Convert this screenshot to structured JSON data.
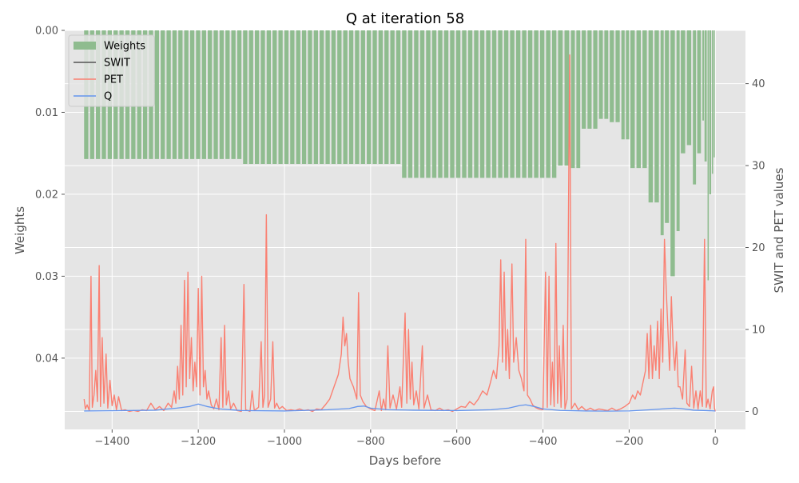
{
  "chart_data": {
    "type": "bar+line",
    "title": "Q at iteration 58",
    "xlabel": "Days before",
    "ylabel_left": "Weights",
    "ylabel_right": "SWIT and PET values",
    "xlim": [
      -1510,
      70
    ],
    "ylim_left": [
      0.0487,
      0.0
    ],
    "ylim_right": [
      -2.2,
      46.5
    ],
    "x_ticks": [
      -1400,
      -1200,
      -1000,
      -800,
      -600,
      -400,
      -200,
      0
    ],
    "x_tick_labels": [
      "−1400",
      "−1200",
      "−1000",
      "−800",
      "−600",
      "−400",
      "−200",
      "0"
    ],
    "y_left_ticks": [
      0.0,
      0.01,
      0.02,
      0.03,
      0.04
    ],
    "y_left_tick_labels": [
      "0.00",
      "0.01",
      "0.02",
      "0.03",
      "0.04"
    ],
    "y_right_ticks": [
      0,
      10,
      20,
      30,
      40
    ],
    "y_right_tick_labels": [
      "0",
      "10",
      "20",
      "30",
      "40"
    ],
    "grid": true,
    "legend_position": "top-left",
    "legend": [
      {
        "label": "Weights",
        "kind": "patch",
        "color": "#8fbc8f"
      },
      {
        "label": "SWIT",
        "kind": "line",
        "color": "#555555"
      },
      {
        "label": "PET",
        "kind": "line",
        "color": "#fa8072"
      },
      {
        "label": "Q",
        "kind": "line",
        "color": "#6495ed"
      }
    ],
    "weights_segments": [
      {
        "x_start": -1465,
        "x_end": -1096,
        "value": 0.0157
      },
      {
        "x_start": -1096,
        "x_end": -727,
        "value": 0.0163
      },
      {
        "x_start": -727,
        "x_end": -365,
        "value": 0.018
      },
      {
        "x_start": -365,
        "x_end": -335,
        "value": 0.0165
      },
      {
        "x_start": -335,
        "x_end": -310,
        "value": 0.0168
      },
      {
        "x_start": -310,
        "x_end": -270,
        "value": 0.012
      },
      {
        "x_start": -270,
        "x_end": -245,
        "value": 0.0108
      },
      {
        "x_start": -245,
        "x_end": -218,
        "value": 0.0112
      },
      {
        "x_start": -218,
        "x_end": -197,
        "value": 0.0133
      },
      {
        "x_start": -197,
        "x_end": -155,
        "value": 0.0168
      },
      {
        "x_start": -155,
        "x_end": -127,
        "value": 0.021
      },
      {
        "x_start": -127,
        "x_end": -117,
        "value": 0.025
      },
      {
        "x_start": -117,
        "x_end": -104,
        "value": 0.0235
      },
      {
        "x_start": -104,
        "x_end": -90,
        "value": 0.03
      },
      {
        "x_start": -90,
        "x_end": -80,
        "value": 0.0245
      },
      {
        "x_start": -80,
        "x_end": -66,
        "value": 0.015
      },
      {
        "x_start": -66,
        "x_end": -52,
        "value": 0.014
      },
      {
        "x_start": -52,
        "x_end": -42,
        "value": 0.0188
      },
      {
        "x_start": -42,
        "x_end": -30,
        "value": 0.015
      },
      {
        "x_start": -30,
        "x_end": -25,
        "value": 0.011
      },
      {
        "x_start": -25,
        "x_end": -18,
        "value": 0.016
      },
      {
        "x_start": -18,
        "x_end": -14,
        "value": 0.0305
      },
      {
        "x_start": -14,
        "x_end": -8,
        "value": 0.02
      },
      {
        "x_start": -8,
        "x_end": -4,
        "value": 0.0175
      },
      {
        "x_start": -4,
        "x_end": 0,
        "value": 0.0155
      }
    ],
    "pet_series": [
      [
        -1465,
        1.5
      ],
      [
        -1462,
        0.3
      ],
      [
        -1458,
        0.8
      ],
      [
        -1453,
        0.1
      ],
      [
        -1449,
        16.5
      ],
      [
        -1446,
        0.5
      ],
      [
        -1442,
        2.0
      ],
      [
        -1438,
        5.0
      ],
      [
        -1434,
        1.2
      ],
      [
        -1430,
        17.8
      ],
      [
        -1427,
        0.6
      ],
      [
        -1423,
        9.0
      ],
      [
        -1419,
        1.0
      ],
      [
        -1414,
        7.0
      ],
      [
        -1410,
        0.4
      ],
      [
        -1405,
        3.8
      ],
      [
        -1400,
        0.7
      ],
      [
        -1395,
        2.0
      ],
      [
        -1390,
        0.2
      ],
      [
        -1385,
        1.8
      ],
      [
        -1378,
        0.1
      ],
      [
        -1370,
        0.2
      ],
      [
        -1360,
        0.0
      ],
      [
        -1350,
        0.1
      ],
      [
        -1340,
        0.0
      ],
      [
        -1330,
        0.2
      ],
      [
        -1320,
        0.1
      ],
      [
        -1310,
        1.0
      ],
      [
        -1300,
        0.2
      ],
      [
        -1290,
        0.6
      ],
      [
        -1280,
        0.1
      ],
      [
        -1270,
        1.0
      ],
      [
        -1262,
        0.5
      ],
      [
        -1256,
        2.5
      ],
      [
        -1252,
        1.0
      ],
      [
        -1248,
        5.5
      ],
      [
        -1244,
        1.5
      ],
      [
        -1240,
        10.5
      ],
      [
        -1236,
        2.0
      ],
      [
        -1232,
        16.0
      ],
      [
        -1228,
        3.0
      ],
      [
        -1224,
        17.0
      ],
      [
        -1220,
        4.0
      ],
      [
        -1216,
        9.0
      ],
      [
        -1212,
        2.5
      ],
      [
        -1208,
        6.0
      ],
      [
        -1204,
        3.0
      ],
      [
        -1200,
        15.0
      ],
      [
        -1196,
        2.0
      ],
      [
        -1192,
        16.5
      ],
      [
        -1188,
        3.0
      ],
      [
        -1184,
        5.0
      ],
      [
        -1180,
        1.5
      ],
      [
        -1176,
        2.5
      ],
      [
        -1170,
        0.8
      ],
      [
        -1164,
        0.3
      ],
      [
        -1158,
        1.5
      ],
      [
        -1152,
        0.2
      ],
      [
        -1147,
        9.0
      ],
      [
        -1143,
        0.5
      ],
      [
        -1139,
        10.5
      ],
      [
        -1135,
        0.8
      ],
      [
        -1130,
        2.5
      ],
      [
        -1125,
        0.3
      ],
      [
        -1118,
        1.0
      ],
      [
        -1110,
        0.1
      ],
      [
        -1100,
        0.0
      ],
      [
        -1094,
        15.5
      ],
      [
        -1090,
        0.2
      ],
      [
        -1080,
        0.0
      ],
      [
        -1075,
        2.5
      ],
      [
        -1070,
        0.1
      ],
      [
        -1060,
        0.5
      ],
      [
        -1054,
        8.5
      ],
      [
        -1050,
        0.5
      ],
      [
        -1046,
        2.0
      ],
      [
        -1042,
        24.0
      ],
      [
        -1038,
        0.5
      ],
      [
        -1032,
        1.5
      ],
      [
        -1027,
        8.5
      ],
      [
        -1023,
        0.4
      ],
      [
        -1018,
        1.0
      ],
      [
        -1012,
        0.3
      ],
      [
        -1005,
        0.6
      ],
      [
        -995,
        0.1
      ],
      [
        -985,
        0.2
      ],
      [
        -975,
        0.1
      ],
      [
        -965,
        0.3
      ],
      [
        -955,
        0.1
      ],
      [
        -945,
        0.2
      ],
      [
        -935,
        0.0
      ],
      [
        -925,
        0.3
      ],
      [
        -915,
        0.2
      ],
      [
        -905,
        0.8
      ],
      [
        -895,
        1.5
      ],
      [
        -885,
        3.0
      ],
      [
        -875,
        4.5
      ],
      [
        -868,
        7.0
      ],
      [
        -864,
        11.5
      ],
      [
        -860,
        8.0
      ],
      [
        -856,
        9.5
      ],
      [
        -852,
        6.0
      ],
      [
        -848,
        4.0
      ],
      [
        -840,
        3.0
      ],
      [
        -832,
        1.5
      ],
      [
        -828,
        14.5
      ],
      [
        -824,
        2.0
      ],
      [
        -818,
        1.2
      ],
      [
        -810,
        0.6
      ],
      [
        -800,
        0.3
      ],
      [
        -790,
        0.1
      ],
      [
        -780,
        2.5
      ],
      [
        -775,
        0.1
      ],
      [
        -770,
        1.5
      ],
      [
        -765,
        0.2
      ],
      [
        -760,
        8.0
      ],
      [
        -755,
        0.4
      ],
      [
        -748,
        2.0
      ],
      [
        -740,
        0.3
      ],
      [
        -732,
        3.0
      ],
      [
        -728,
        0.5
      ],
      [
        -720,
        12.0
      ],
      [
        -716,
        1.0
      ],
      [
        -712,
        10.0
      ],
      [
        -708,
        1.5
      ],
      [
        -704,
        6.0
      ],
      [
        -700,
        0.8
      ],
      [
        -694,
        2.5
      ],
      [
        -688,
        0.3
      ],
      [
        -680,
        8.0
      ],
      [
        -676,
        0.4
      ],
      [
        -668,
        2.0
      ],
      [
        -660,
        0.2
      ],
      [
        -650,
        0.1
      ],
      [
        -640,
        0.4
      ],
      [
        -630,
        0.1
      ],
      [
        -620,
        0.2
      ],
      [
        -610,
        0.0
      ],
      [
        -600,
        0.3
      ],
      [
        -590,
        0.6
      ],
      [
        -580,
        0.5
      ],
      [
        -570,
        1.2
      ],
      [
        -560,
        0.8
      ],
      [
        -550,
        1.5
      ],
      [
        -540,
        2.5
      ],
      [
        -530,
        2.0
      ],
      [
        -522,
        3.5
      ],
      [
        -515,
        5.0
      ],
      [
        -508,
        4.0
      ],
      [
        -502,
        8.0
      ],
      [
        -498,
        18.5
      ],
      [
        -494,
        6.0
      ],
      [
        -490,
        17.0
      ],
      [
        -486,
        5.0
      ],
      [
        -482,
        10.0
      ],
      [
        -478,
        4.0
      ],
      [
        -472,
        18.0
      ],
      [
        -468,
        6.0
      ],
      [
        -462,
        9.0
      ],
      [
        -456,
        5.0
      ],
      [
        -450,
        4.0
      ],
      [
        -444,
        2.5
      ],
      [
        -440,
        21.0
      ],
      [
        -436,
        2.0
      ],
      [
        -430,
        1.5
      ],
      [
        -424,
        0.8
      ],
      [
        -418,
        0.5
      ],
      [
        -410,
        0.3
      ],
      [
        -400,
        0.2
      ],
      [
        -394,
        17.0
      ],
      [
        -390,
        0.5
      ],
      [
        -386,
        16.5
      ],
      [
        -382,
        0.8
      ],
      [
        -378,
        6.0
      ],
      [
        -374,
        0.6
      ],
      [
        -370,
        20.5
      ],
      [
        -366,
        1.0
      ],
      [
        -362,
        8.0
      ],
      [
        -358,
        0.5
      ],
      [
        -353,
        10.5
      ],
      [
        -349,
        0.3
      ],
      [
        -344,
        1.5
      ],
      [
        -338,
        43.5
      ],
      [
        -334,
        0.3
      ],
      [
        -326,
        1.0
      ],
      [
        -318,
        0.2
      ],
      [
        -310,
        0.6
      ],
      [
        -300,
        0.1
      ],
      [
        -290,
        0.4
      ],
      [
        -280,
        0.1
      ],
      [
        -270,
        0.3
      ],
      [
        -260,
        0.2
      ],
      [
        -250,
        0.1
      ],
      [
        -240,
        0.4
      ],
      [
        -230,
        0.1
      ],
      [
        -220,
        0.3
      ],
      [
        -210,
        0.6
      ],
      [
        -200,
        1.0
      ],
      [
        -192,
        2.0
      ],
      [
        -186,
        1.5
      ],
      [
        -180,
        2.5
      ],
      [
        -174,
        2.0
      ],
      [
        -168,
        3.5
      ],
      [
        -162,
        5.0
      ],
      [
        -158,
        9.5
      ],
      [
        -154,
        4.0
      ],
      [
        -150,
        10.5
      ],
      [
        -146,
        4.0
      ],
      [
        -142,
        8.0
      ],
      [
        -138,
        5.0
      ],
      [
        -134,
        11.0
      ],
      [
        -130,
        4.0
      ],
      [
        -126,
        12.5
      ],
      [
        -122,
        6.0
      ],
      [
        -118,
        21.0
      ],
      [
        -114,
        15.0
      ],
      [
        -110,
        10.0
      ],
      [
        -106,
        5.0
      ],
      [
        -102,
        14.0
      ],
      [
        -98,
        8.0
      ],
      [
        -94,
        5.0
      ],
      [
        -90,
        8.5
      ],
      [
        -86,
        3.0
      ],
      [
        -82,
        3.0
      ],
      [
        -76,
        1.5
      ],
      [
        -70,
        7.5
      ],
      [
        -66,
        1.0
      ],
      [
        -60,
        0.6
      ],
      [
        -55,
        5.5
      ],
      [
        -50,
        0.4
      ],
      [
        -45,
        2.5
      ],
      [
        -40,
        0.3
      ],
      [
        -35,
        2.5
      ],
      [
        -30,
        0.6
      ],
      [
        -25,
        21.0
      ],
      [
        -21,
        0.5
      ],
      [
        -17,
        1.5
      ],
      [
        -12,
        0.3
      ],
      [
        -7,
        2.5
      ],
      [
        -4,
        3.0
      ],
      [
        -2,
        0.4
      ],
      [
        0,
        0.0
      ]
    ],
    "q_series": [
      [
        -1465,
        0.05
      ],
      [
        -1400,
        0.08
      ],
      [
        -1300,
        0.15
      ],
      [
        -1250,
        0.4
      ],
      [
        -1220,
        0.6
      ],
      [
        -1200,
        0.9
      ],
      [
        -1180,
        0.6
      ],
      [
        -1150,
        0.3
      ],
      [
        -1100,
        0.1
      ],
      [
        -1000,
        0.05
      ],
      [
        -900,
        0.2
      ],
      [
        -850,
        0.35
      ],
      [
        -830,
        0.6
      ],
      [
        -815,
        0.65
      ],
      [
        -800,
        0.4
      ],
      [
        -760,
        0.2
      ],
      [
        -700,
        0.15
      ],
      [
        -600,
        0.1
      ],
      [
        -520,
        0.2
      ],
      [
        -480,
        0.4
      ],
      [
        -455,
        0.7
      ],
      [
        -440,
        0.8
      ],
      [
        -420,
        0.6
      ],
      [
        -400,
        0.3
      ],
      [
        -360,
        0.12
      ],
      [
        -300,
        0.05
      ],
      [
        -250,
        0.03
      ],
      [
        -200,
        0.06
      ],
      [
        -150,
        0.2
      ],
      [
        -110,
        0.35
      ],
      [
        -95,
        0.4
      ],
      [
        -80,
        0.35
      ],
      [
        -50,
        0.15
      ],
      [
        -20,
        0.1
      ],
      [
        0,
        0.05
      ]
    ],
    "swit_series": []
  }
}
